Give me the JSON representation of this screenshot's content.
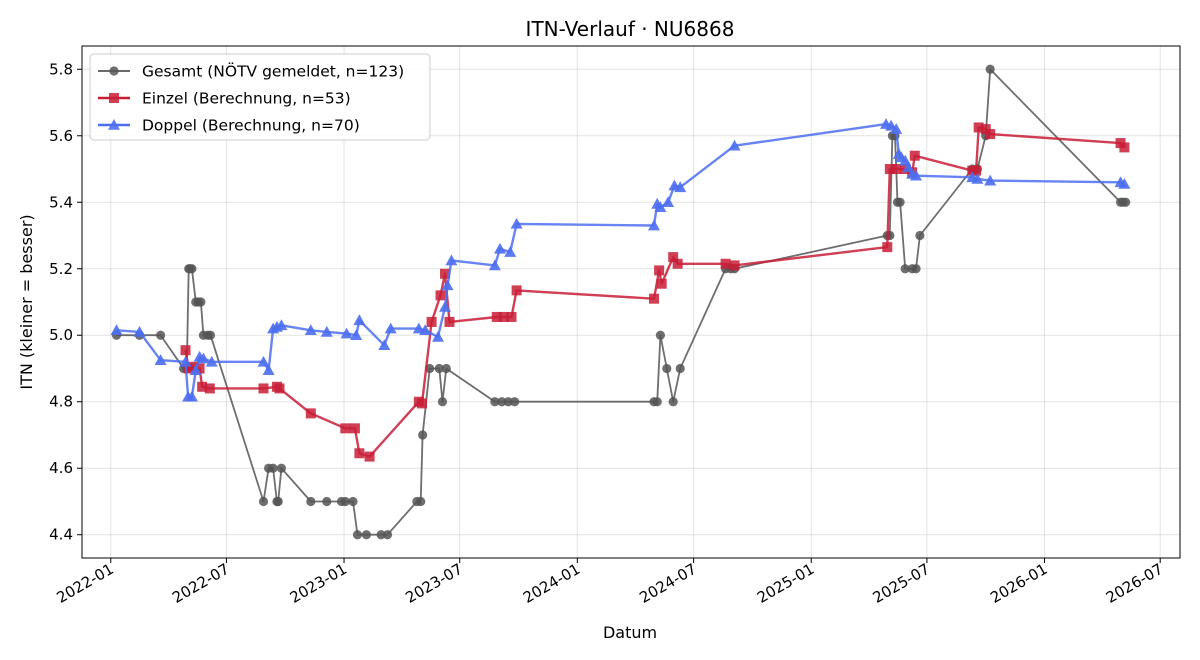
{
  "chart_data": {
    "type": "line",
    "title": "ITN-Verlauf · NU6868",
    "xlabel": "Datum",
    "ylabel": "ITN  (kleiner = besser)",
    "xlim": [
      "2021-11-17",
      "2026-08-01"
    ],
    "ylim": [
      4.33,
      5.87
    ],
    "x_ticks": [
      "2022-01",
      "2022-07",
      "2023-01",
      "2023-07",
      "2024-01",
      "2024-07",
      "2025-01",
      "2025-07",
      "2026-01",
      "2026-07"
    ],
    "y_ticks": [
      4.4,
      4.6,
      4.8,
      5.0,
      5.2,
      5.4,
      5.6,
      5.8
    ],
    "y_tick_labels": [
      "4.4",
      "4.6",
      "4.8",
      "5.0",
      "5.2",
      "5.4",
      "5.6",
      "5.8"
    ],
    "grid": true,
    "legend": "top-left",
    "series": [
      {
        "name": "Gesamt (NÖTV gemeldet, n=123)",
        "color": "#555555",
        "marker": "circle",
        "points": [
          [
            "2022-01-10",
            5.0
          ],
          [
            "2022-02-15",
            5.0
          ],
          [
            "2022-03-20",
            5.0
          ],
          [
            "2022-04-25",
            4.9
          ],
          [
            "2022-04-30",
            4.9
          ],
          [
            "2022-05-03",
            5.2
          ],
          [
            "2022-05-05",
            5.2
          ],
          [
            "2022-05-08",
            5.2
          ],
          [
            "2022-05-14",
            5.1
          ],
          [
            "2022-05-18",
            5.1
          ],
          [
            "2022-05-22",
            5.1
          ],
          [
            "2022-05-26",
            5.0
          ],
          [
            "2022-06-02",
            5.0
          ],
          [
            "2022-06-06",
            5.0
          ],
          [
            "2022-08-28",
            4.5
          ],
          [
            "2022-09-05",
            4.6
          ],
          [
            "2022-09-12",
            4.6
          ],
          [
            "2022-09-18",
            4.5
          ],
          [
            "2022-09-20",
            4.5
          ],
          [
            "2022-09-25",
            4.6
          ],
          [
            "2022-11-10",
            4.5
          ],
          [
            "2022-12-05",
            4.5
          ],
          [
            "2022-12-28",
            4.5
          ],
          [
            "2023-01-03",
            4.5
          ],
          [
            "2023-01-15",
            4.5
          ],
          [
            "2023-01-22",
            4.4
          ],
          [
            "2023-02-05",
            4.4
          ],
          [
            "2023-02-28",
            4.4
          ],
          [
            "2023-03-10",
            4.4
          ],
          [
            "2023-04-25",
            4.5
          ],
          [
            "2023-05-01",
            4.5
          ],
          [
            "2023-05-04",
            4.7
          ],
          [
            "2023-05-15",
            4.9
          ],
          [
            "2023-05-30",
            4.9
          ],
          [
            "2023-06-04",
            4.8
          ],
          [
            "2023-06-10",
            4.9
          ],
          [
            "2023-08-25",
            4.8
          ],
          [
            "2023-09-05",
            4.8
          ],
          [
            "2023-09-15",
            4.8
          ],
          [
            "2023-09-25",
            4.8
          ],
          [
            "2024-04-30",
            4.8
          ],
          [
            "2024-05-05",
            4.8
          ],
          [
            "2024-05-10",
            5.0
          ],
          [
            "2024-05-20",
            4.9
          ],
          [
            "2024-05-30",
            4.8
          ],
          [
            "2024-06-10",
            4.9
          ],
          [
            "2024-08-20",
            5.2
          ],
          [
            "2024-08-28",
            5.2
          ],
          [
            "2024-09-03",
            5.2
          ],
          [
            "2025-04-30",
            5.3
          ],
          [
            "2025-05-04",
            5.3
          ],
          [
            "2025-05-08",
            5.6
          ],
          [
            "2025-05-12",
            5.6
          ],
          [
            "2025-05-16",
            5.4
          ],
          [
            "2025-05-20",
            5.4
          ],
          [
            "2025-05-28",
            5.2
          ],
          [
            "2025-06-08",
            5.2
          ],
          [
            "2025-06-14",
            5.2
          ],
          [
            "2025-06-20",
            5.3
          ],
          [
            "2025-09-10",
            5.5
          ],
          [
            "2025-09-18",
            5.5
          ],
          [
            "2025-10-01",
            5.6
          ],
          [
            "2025-10-08",
            5.8
          ],
          [
            "2026-04-30",
            5.4
          ],
          [
            "2026-05-04",
            5.4
          ],
          [
            "2026-05-08",
            5.4
          ]
        ]
      },
      {
        "name": "Einzel (Berechnung, n=53)",
        "color": "#c81d36",
        "marker": "square",
        "points": [
          [
            "2022-04-28",
            4.955
          ],
          [
            "2022-05-03",
            4.9
          ],
          [
            "2022-05-10",
            4.905
          ],
          [
            "2022-05-20",
            4.9
          ],
          [
            "2022-05-24",
            4.845
          ],
          [
            "2022-06-05",
            4.84
          ],
          [
            "2022-08-28",
            4.84
          ],
          [
            "2022-09-18",
            4.845
          ],
          [
            "2022-09-22",
            4.84
          ],
          [
            "2022-11-10",
            4.765
          ],
          [
            "2023-01-03",
            4.72
          ],
          [
            "2023-01-18",
            4.72
          ],
          [
            "2023-01-25",
            4.645
          ],
          [
            "2023-02-10",
            4.635
          ],
          [
            "2023-04-28",
            4.8
          ],
          [
            "2023-05-03",
            4.795
          ],
          [
            "2023-05-18",
            5.04
          ],
          [
            "2023-06-01",
            5.12
          ],
          [
            "2023-06-08",
            5.185
          ],
          [
            "2023-06-15",
            5.04
          ],
          [
            "2023-08-28",
            5.055
          ],
          [
            "2023-09-08",
            5.055
          ],
          [
            "2023-09-20",
            5.055
          ],
          [
            "2023-09-28",
            5.135
          ],
          [
            "2024-04-30",
            5.11
          ],
          [
            "2024-05-08",
            5.195
          ],
          [
            "2024-05-12",
            5.155
          ],
          [
            "2024-05-30",
            5.235
          ],
          [
            "2024-06-06",
            5.215
          ],
          [
            "2024-08-20",
            5.215
          ],
          [
            "2024-09-03",
            5.21
          ],
          [
            "2025-04-30",
            5.265
          ],
          [
            "2025-05-04",
            5.5
          ],
          [
            "2025-05-14",
            5.5
          ],
          [
            "2025-05-28",
            5.5
          ],
          [
            "2025-06-08",
            5.49
          ],
          [
            "2025-06-12",
            5.54
          ],
          [
            "2025-09-10",
            5.495
          ],
          [
            "2025-09-16",
            5.495
          ],
          [
            "2025-09-20",
            5.625
          ],
          [
            "2025-10-01",
            5.62
          ],
          [
            "2025-10-08",
            5.605
          ],
          [
            "2026-04-30",
            5.578
          ],
          [
            "2026-05-06",
            5.565
          ]
        ]
      },
      {
        "name": "Doppel (Berechnung, n=70)",
        "color": "#4c6ef0",
        "marker": "triangle",
        "points": [
          [
            "2022-01-10",
            5.015
          ],
          [
            "2022-02-15",
            5.01
          ],
          [
            "2022-03-20",
            4.925
          ],
          [
            "2022-04-28",
            4.92
          ],
          [
            "2022-05-02",
            4.815
          ],
          [
            "2022-05-08",
            4.815
          ],
          [
            "2022-05-14",
            4.895
          ],
          [
            "2022-05-20",
            4.935
          ],
          [
            "2022-05-26",
            4.93
          ],
          [
            "2022-06-08",
            4.92
          ],
          [
            "2022-08-28",
            4.92
          ],
          [
            "2022-09-05",
            4.895
          ],
          [
            "2022-09-12",
            5.02
          ],
          [
            "2022-09-18",
            5.025
          ],
          [
            "2022-09-25",
            5.03
          ],
          [
            "2022-11-10",
            5.015
          ],
          [
            "2022-12-05",
            5.01
          ],
          [
            "2023-01-05",
            5.005
          ],
          [
            "2023-01-20",
            5.0
          ],
          [
            "2023-01-25",
            5.045
          ],
          [
            "2023-03-05",
            4.97
          ],
          [
            "2023-03-15",
            5.02
          ],
          [
            "2023-04-28",
            5.02
          ],
          [
            "2023-05-08",
            5.015
          ],
          [
            "2023-05-28",
            4.995
          ],
          [
            "2023-06-08",
            5.085
          ],
          [
            "2023-06-12",
            5.15
          ],
          [
            "2023-06-18",
            5.225
          ],
          [
            "2023-08-25",
            5.21
          ],
          [
            "2023-09-02",
            5.26
          ],
          [
            "2023-09-18",
            5.25
          ],
          [
            "2023-09-28",
            5.335
          ],
          [
            "2024-04-30",
            5.33
          ],
          [
            "2024-05-05",
            5.395
          ],
          [
            "2024-05-10",
            5.385
          ],
          [
            "2024-05-22",
            5.4
          ],
          [
            "2024-06-01",
            5.45
          ],
          [
            "2024-06-10",
            5.445
          ],
          [
            "2024-09-03",
            5.57
          ],
          [
            "2025-04-28",
            5.635
          ],
          [
            "2025-05-06",
            5.63
          ],
          [
            "2025-05-14",
            5.62
          ],
          [
            "2025-05-18",
            5.545
          ],
          [
            "2025-05-22",
            5.535
          ],
          [
            "2025-05-28",
            5.525
          ],
          [
            "2025-06-02",
            5.505
          ],
          [
            "2025-06-08",
            5.485
          ],
          [
            "2025-06-14",
            5.48
          ],
          [
            "2025-09-10",
            5.475
          ],
          [
            "2025-09-18",
            5.47
          ],
          [
            "2025-10-08",
            5.465
          ],
          [
            "2026-04-30",
            5.46
          ],
          [
            "2026-05-06",
            5.455
          ]
        ]
      }
    ]
  }
}
